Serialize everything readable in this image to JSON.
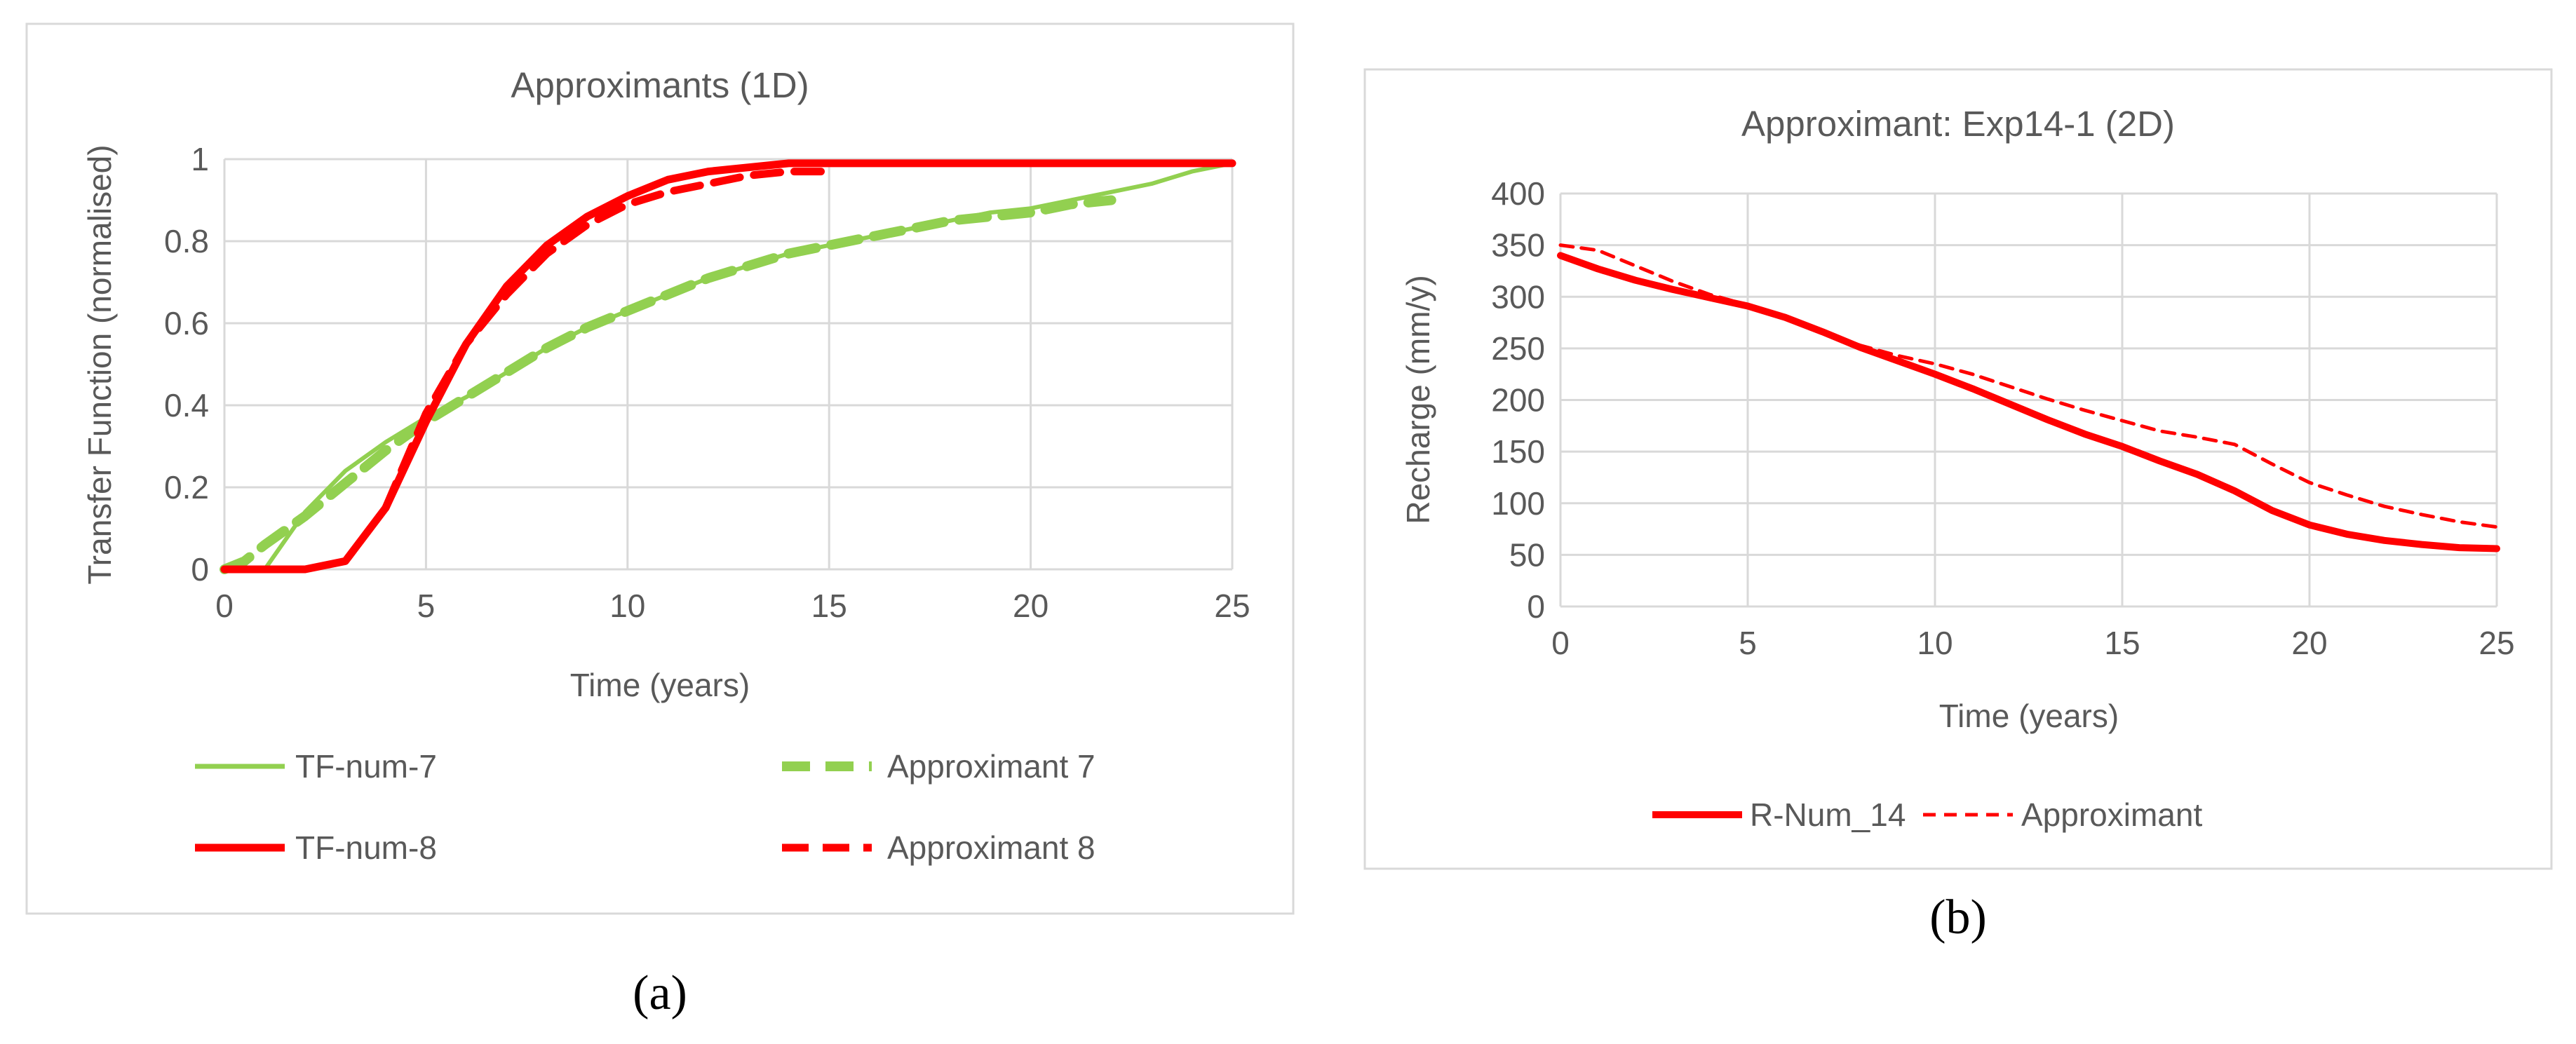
{
  "chart_data": [
    {
      "type": "line",
      "panel_label": "(a)",
      "title": "Approximants (1D)",
      "xlabel": "Time (years)",
      "ylabel": "Transfer Function (normalised)",
      "xlim": [
        0,
        25
      ],
      "ylim": [
        0,
        1
      ],
      "xticks": [
        "0",
        "5",
        "10",
        "15",
        "20",
        "25"
      ],
      "yticks": [
        "0",
        "0.2",
        "0.4",
        "0.6",
        "0.8",
        "1"
      ],
      "grid": true,
      "legend_position": "bottom",
      "series": [
        {
          "name": "TF-num-7",
          "color": "#92d050",
          "style": "solid",
          "x": [
            0,
            1,
            1.5,
            2,
            3,
            4,
            5,
            6,
            7,
            8,
            9,
            10,
            11,
            12,
            13,
            14,
            15,
            16,
            17,
            18,
            19,
            20,
            21,
            22,
            23,
            24,
            25
          ],
          "y": [
            0,
            0,
            0.07,
            0.14,
            0.24,
            0.31,
            0.37,
            0.42,
            0.48,
            0.54,
            0.59,
            0.63,
            0.67,
            0.71,
            0.74,
            0.77,
            0.79,
            0.81,
            0.83,
            0.85,
            0.87,
            0.88,
            0.9,
            0.92,
            0.94,
            0.97,
            0.99
          ]
        },
        {
          "name": "Approximant 7",
          "color": "#92d050",
          "style": "dashed",
          "x": [
            0,
            0.5,
            1,
            2,
            3,
            4,
            5,
            6,
            7,
            8,
            9,
            10,
            11,
            12,
            13,
            14,
            15,
            16,
            17,
            18,
            19,
            20,
            21,
            22
          ],
          "y": [
            0,
            0.02,
            0.06,
            0.13,
            0.21,
            0.29,
            0.36,
            0.42,
            0.48,
            0.54,
            0.59,
            0.63,
            0.67,
            0.71,
            0.74,
            0.77,
            0.79,
            0.81,
            0.83,
            0.85,
            0.86,
            0.87,
            0.89,
            0.9
          ]
        },
        {
          "name": "TF-num-8",
          "color": "#ff0000",
          "style": "solid",
          "x": [
            0,
            1,
            2,
            3,
            4,
            5,
            6,
            7,
            8,
            9,
            10,
            11,
            12,
            13,
            14,
            15,
            16,
            17,
            18,
            19,
            20,
            21,
            22,
            23,
            24,
            25
          ],
          "y": [
            0,
            0,
            0,
            0.02,
            0.15,
            0.36,
            0.55,
            0.69,
            0.79,
            0.86,
            0.91,
            0.95,
            0.97,
            0.98,
            0.99,
            0.99,
            0.99,
            0.99,
            0.99,
            0.99,
            0.99,
            0.99,
            0.99,
            0.99,
            0.99,
            0.99
          ]
        },
        {
          "name": "Approximant 8",
          "color": "#ff0000",
          "style": "dashed",
          "x": [
            4,
            5,
            6,
            7,
            8,
            9,
            10,
            11,
            12,
            13,
            14,
            15
          ],
          "y": [
            0.15,
            0.38,
            0.55,
            0.67,
            0.77,
            0.84,
            0.89,
            0.92,
            0.94,
            0.96,
            0.97,
            0.97
          ]
        }
      ]
    },
    {
      "type": "line",
      "panel_label": "(b)",
      "title": "Approximant: Exp14-1 (2D)",
      "xlabel": "Time (years)",
      "ylabel": "Recharge (mm/y)",
      "xlim": [
        0,
        25
      ],
      "ylim": [
        0,
        400
      ],
      "xticks": [
        "0",
        "5",
        "10",
        "15",
        "20",
        "25"
      ],
      "yticks": [
        "0",
        "50",
        "100",
        "150",
        "200",
        "250",
        "300",
        "350",
        "400"
      ],
      "grid": true,
      "legend_position": "bottom",
      "series": [
        {
          "name": "R-Num_14",
          "color": "#ff0000",
          "style": "solid",
          "x": [
            0,
            1,
            2,
            3,
            4,
            5,
            6,
            7,
            8,
            9,
            10,
            11,
            12,
            13,
            14,
            15,
            16,
            17,
            18,
            19,
            20,
            21,
            22,
            23,
            24,
            25
          ],
          "y": [
            340,
            327,
            316,
            307,
            299,
            291,
            280,
            266,
            251,
            238,
            225,
            211,
            196,
            181,
            167,
            155,
            141,
            128,
            112,
            93,
            79,
            70,
            64,
            60,
            57,
            56
          ]
        },
        {
          "name": "Approximant",
          "color": "#ff0000",
          "style": "dashed",
          "x": [
            0,
            1,
            2,
            3,
            4,
            5,
            6,
            7,
            8,
            9,
            10,
            11,
            12,
            13,
            14,
            15,
            16,
            17,
            18,
            19,
            20,
            21,
            22,
            23,
            24,
            25
          ],
          "y": [
            350,
            345,
            330,
            315,
            302,
            292,
            279,
            265,
            253,
            243,
            235,
            225,
            213,
            201,
            190,
            180,
            170,
            164,
            157,
            138,
            120,
            108,
            97,
            89,
            82,
            77
          ]
        }
      ]
    }
  ]
}
